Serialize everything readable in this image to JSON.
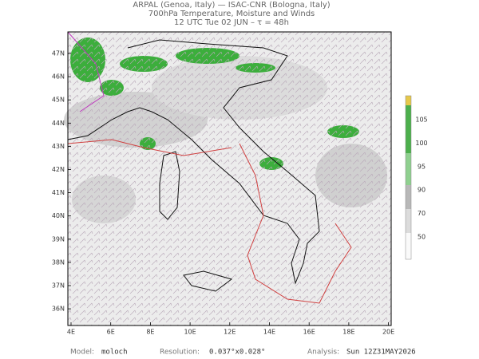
{
  "header": {
    "line1": "ARPAL (Genoa, Italy)  —  ISAC-CNR (Bologna, Italy)",
    "line2": "700hPa Temperature, Moisture and Winds",
    "line3": "12 UTC Tue 02 JUN  –  τ = 48h"
  },
  "map": {
    "lat_labels": [
      "47N",
      "46N",
      "45N",
      "44N",
      "43N",
      "42N",
      "41N",
      "40N",
      "39N",
      "38N",
      "37N",
      "36N"
    ],
    "lon_labels": [
      "4E",
      "6E",
      "8E",
      "10E",
      "12E",
      "14E",
      "16E",
      "18E",
      "20E"
    ]
  },
  "colorbar": {
    "labels": [
      105,
      100,
      95,
      90,
      70,
      50
    ]
  },
  "footer": {
    "model_label": "Model:",
    "model": "moloch",
    "resolution_label": "Resolution:",
    "resolution": "0.037°x0.028°",
    "analysis_label": "Analysis:",
    "analysis": "Sun 12Z31MAY2026"
  }
}
